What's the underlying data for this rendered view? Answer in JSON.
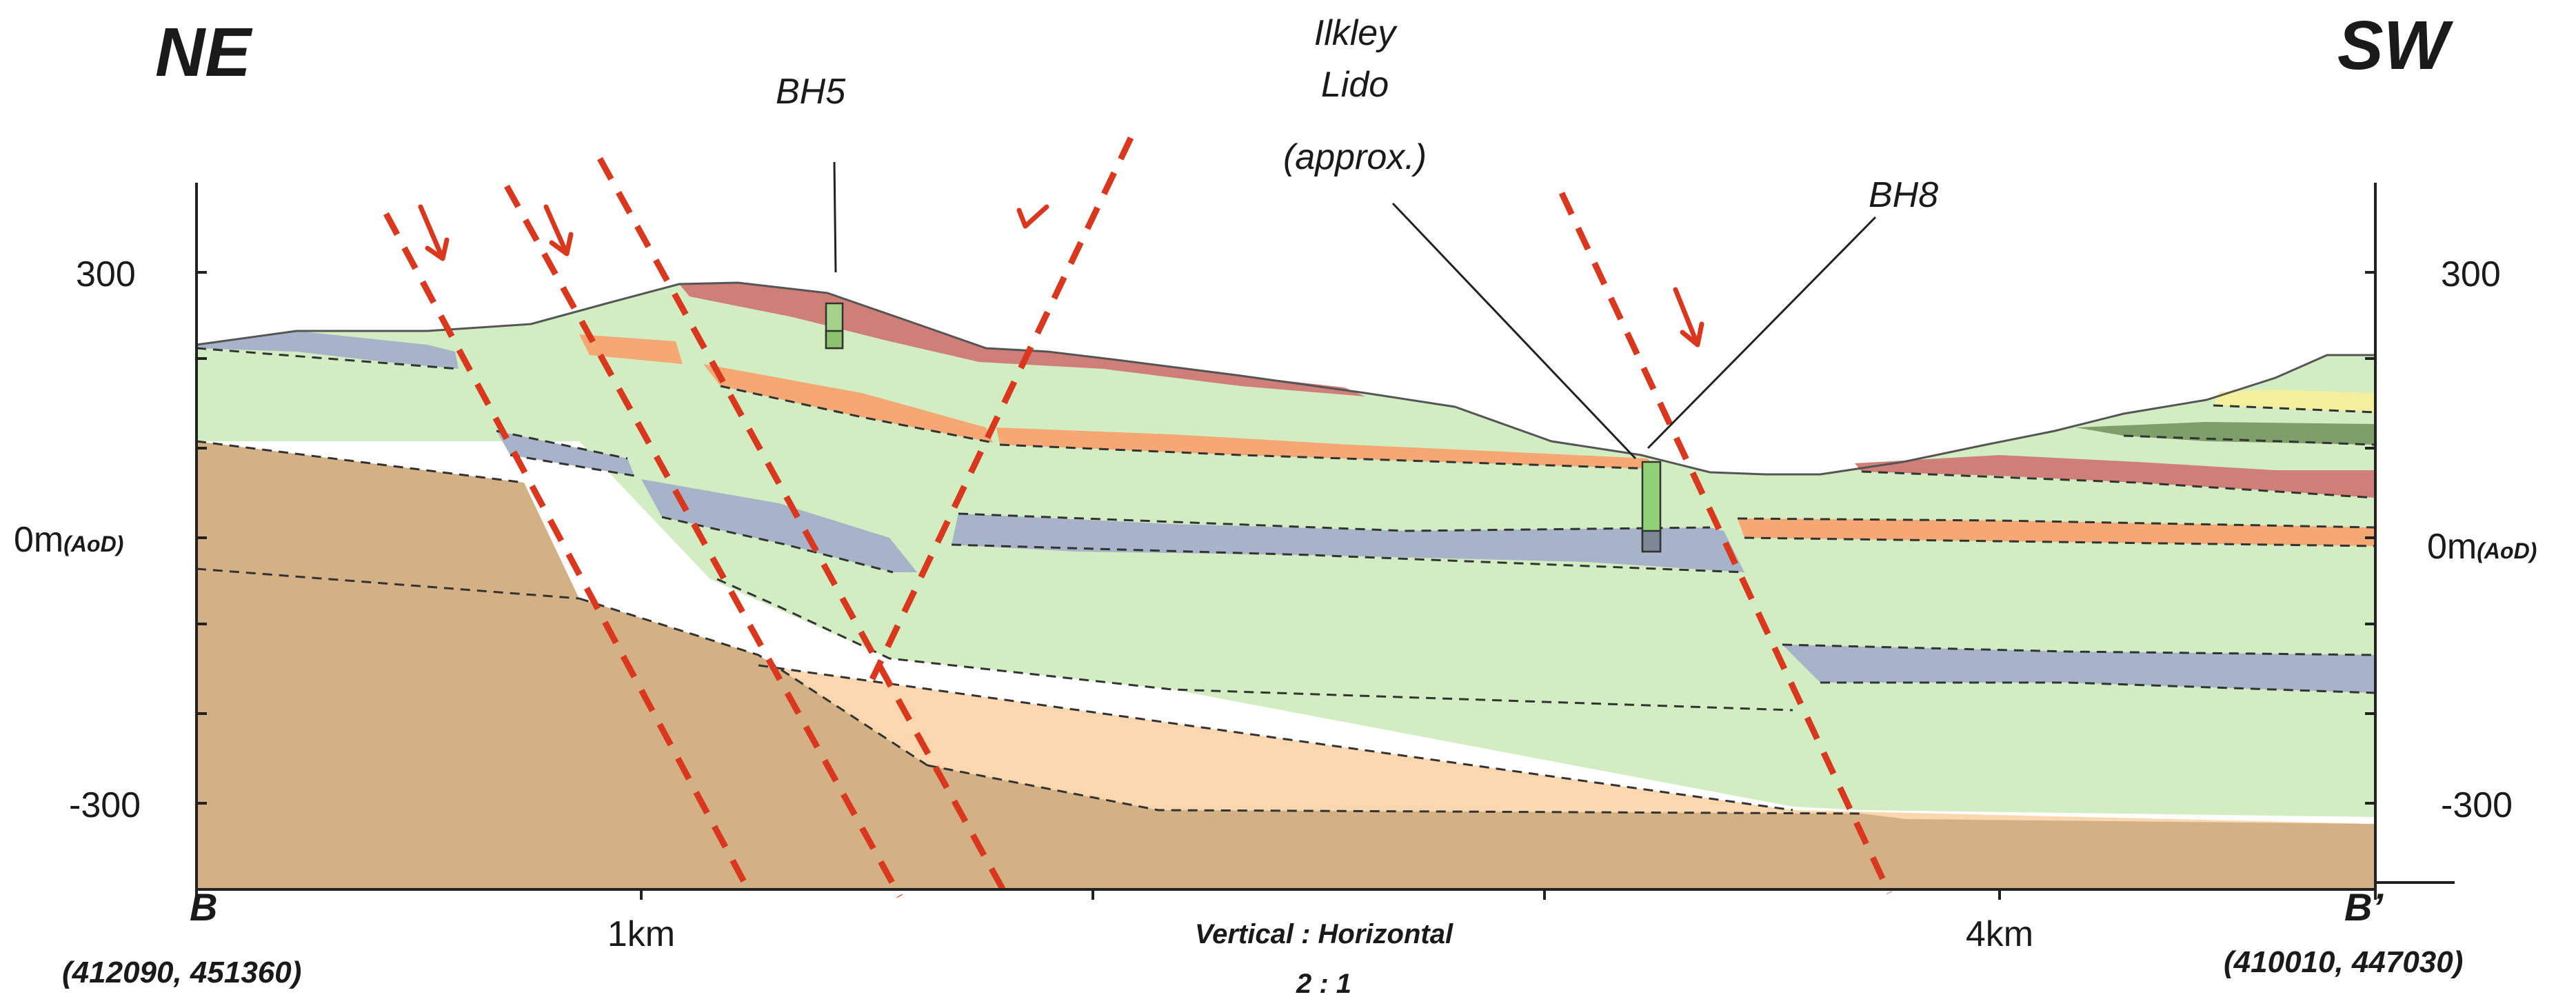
{
  "direction_left": "NE",
  "direction_right": "SW",
  "borehole_labels": {
    "bh5": "BH5",
    "bh8": "BH8"
  },
  "lido_label": {
    "line1": "Ilkley",
    "line2": "Lido",
    "line3": "(approx.)"
  },
  "y_axis_left": {
    "top": "300",
    "zero": "0m",
    "zero_suffix": "(AoD)",
    "bottom": "-300"
  },
  "y_axis_right": {
    "top": "300",
    "zero": "0m",
    "zero_suffix": "(AoD)",
    "bottom": "-300"
  },
  "x_axis": {
    "label_1km": "1km",
    "label_4km": "4km"
  },
  "endpoint_left": {
    "name": "B",
    "coords": "(412090, 451360)"
  },
  "endpoint_right": {
    "name": "B’",
    "coords": "(410010, 447030)"
  },
  "scale_note": {
    "line1": "Vertical : Horizontal",
    "line2": "2 : 1"
  },
  "colors": {
    "sandstone_base": "#fad7ae",
    "mudstone_brown": "#d4b085",
    "shale_green": "#d3edc2",
    "blue_grey_bed": "#a6b3c9",
    "orange_bed": "#f5a873",
    "red_bed": "#cf7f77",
    "dark_green_bed": "#7e9e6a",
    "yellow_bed": "#f3ef9c",
    "fault_red": "#d9381e"
  }
}
